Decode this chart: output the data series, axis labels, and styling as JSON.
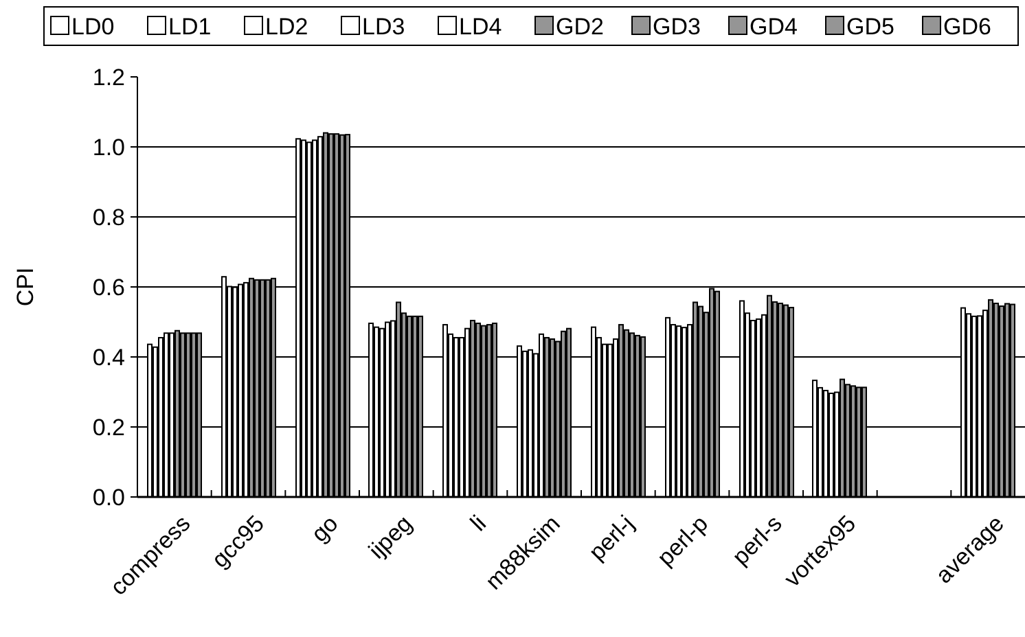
{
  "chart_data": {
    "type": "bar",
    "ylabel": "CPI",
    "categories": [
      "compress",
      "gcc95",
      "go",
      "ijpeg",
      "li",
      "m88ksim",
      "perl-j",
      "perl-p",
      "perl-s",
      "vortex95",
      null,
      "average"
    ],
    "series": [
      {
        "name": "LD0",
        "color": "#ffffff",
        "values": [
          0.436,
          0.629,
          1.023,
          0.496,
          0.492,
          0.431,
          0.485,
          0.512,
          0.56,
          0.333,
          null,
          0.54
        ]
      },
      {
        "name": "LD1",
        "color": "#ffffff",
        "values": [
          0.428,
          0.601,
          1.019,
          0.485,
          0.465,
          0.416,
          0.455,
          0.492,
          0.525,
          0.312,
          null,
          0.523
        ]
      },
      {
        "name": "LD2",
        "color": "#ffffff",
        "values": [
          0.455,
          0.599,
          1.013,
          0.481,
          0.455,
          0.42,
          0.436,
          0.488,
          0.504,
          0.304,
          null,
          0.516
        ]
      },
      {
        "name": "LD3",
        "color": "#ffffff",
        "values": [
          0.468,
          0.607,
          1.019,
          0.499,
          0.455,
          0.409,
          0.436,
          0.484,
          0.508,
          0.296,
          null,
          0.517
        ]
      },
      {
        "name": "LD4",
        "color": "#ffffff",
        "values": [
          0.468,
          0.612,
          1.029,
          0.503,
          0.481,
          0.465,
          0.451,
          0.492,
          0.52,
          0.299,
          null,
          0.533
        ]
      },
      {
        "name": "GD2",
        "color": "#959595",
        "values": [
          0.475,
          0.624,
          1.04,
          0.556,
          0.504,
          0.455,
          0.492,
          0.556,
          0.575,
          0.336,
          null,
          0.563
        ]
      },
      {
        "name": "GD3",
        "color": "#959595",
        "values": [
          0.468,
          0.62,
          1.037,
          0.525,
          0.496,
          0.451,
          0.477,
          0.544,
          0.557,
          0.321,
          null,
          0.553
        ]
      },
      {
        "name": "GD4",
        "color": "#959595",
        "values": [
          0.468,
          0.62,
          1.037,
          0.516,
          0.489,
          0.444,
          0.468,
          0.527,
          0.553,
          0.317,
          null,
          0.545
        ]
      },
      {
        "name": "GD5",
        "color": "#959595",
        "values": [
          0.468,
          0.62,
          1.034,
          0.516,
          0.492,
          0.473,
          0.461,
          0.595,
          0.548,
          0.313,
          null,
          0.552
        ]
      },
      {
        "name": "GD6",
        "color": "#959595",
        "values": [
          0.468,
          0.624,
          1.035,
          0.516,
          0.496,
          0.481,
          0.457,
          0.587,
          0.541,
          0.313,
          null,
          0.55
        ]
      }
    ],
    "ylim": [
      0,
      1.2
    ],
    "yticks": [
      {
        "value": 0,
        "label": "0.0"
      },
      0.2,
      0.4,
      0.6,
      0.8,
      {
        "value": 1,
        "label": "1.0"
      },
      1.2
    ],
    "grid": "y",
    "legend": "top"
  }
}
